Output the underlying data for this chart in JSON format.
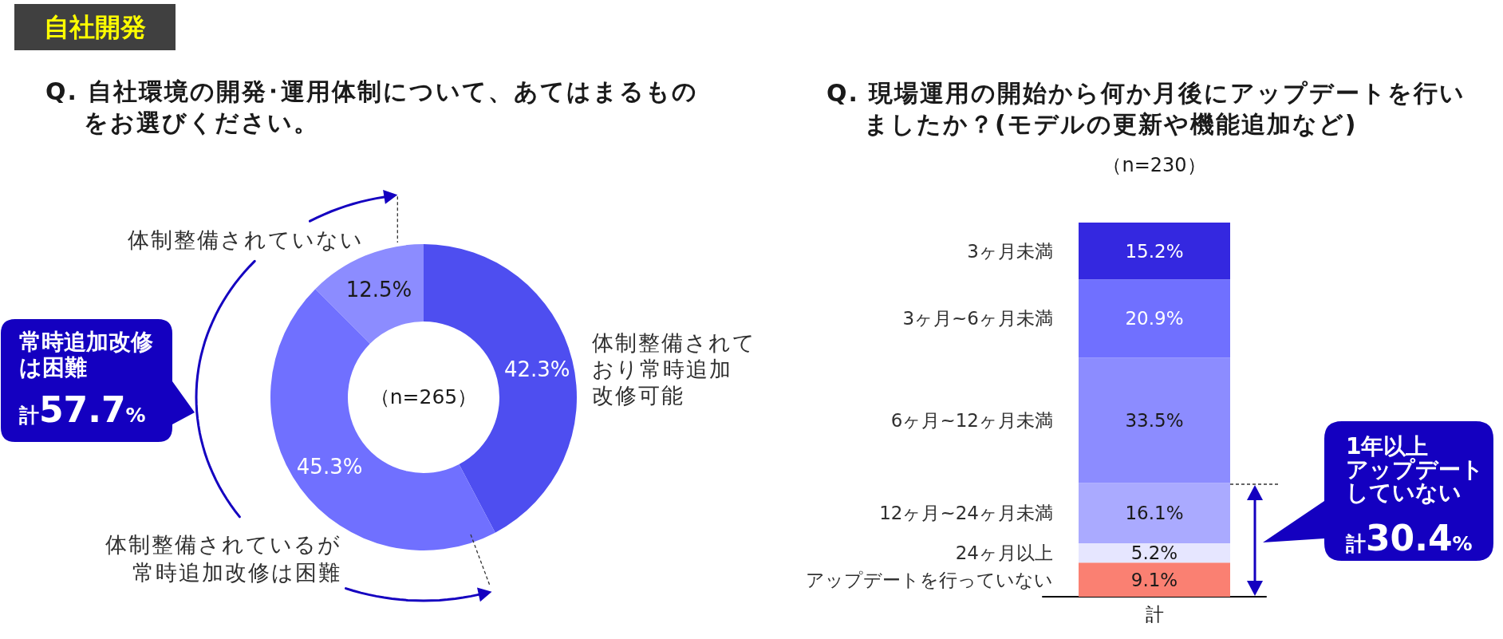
{
  "chart_data": [
    {
      "type": "donut",
      "title": "Q. 自社環境の開発･運用体制について、あてはまるものをお選びください。",
      "categories": [
        "体制整備されており常時追加改修可能",
        "体制整備されているが常時追加改修は困難",
        "体制整備されていない"
      ],
      "values": [
        42.3,
        45.3,
        12.5
      ],
      "colors": [
        "#4e4ef0",
        "#7070ff",
        "#8c8cff"
      ],
      "value_labels": [
        "42.3%",
        "45.3%",
        "12.5%"
      ],
      "annotations": [
        "自社開発",
        "（n=265）",
        "常時追加改修は困難",
        "計57.7%"
      ]
    },
    {
      "type": "bar",
      "title": "Q. 現場運用の開始から何か月後にアップデートを行いましたか？(モデルの更新や機能追加など)",
      "subtitle": "（n=230）",
      "categories": [
        "計"
      ],
      "stacked": true,
      "ylim": [
        0,
        100
      ],
      "tick_labels": "x",
      "series": [
        {
          "name": "アップデートを行っていない",
          "color": "#fa8072",
          "values": [
            9.1
          ],
          "value_labels": [
            "9.1%"
          ]
        },
        {
          "name": "24ヶ月以上",
          "color": "#e6e6ff",
          "values": [
            5.2
          ],
          "value_labels": [
            "5.2%"
          ]
        },
        {
          "name": "12ヶ月~24ヶ月未満",
          "color": "#aaaaff",
          "values": [
            16.1
          ],
          "value_labels": [
            "16.1%"
          ]
        },
        {
          "name": "6ヶ月~12ヶ月未満",
          "color": "#8c8cff",
          "values": [
            33.5
          ],
          "value_labels": [
            "33.5%"
          ]
        },
        {
          "name": "3ヶ月~6ヶ月未満",
          "color": "#7070ff",
          "values": [
            20.9
          ],
          "value_labels": [
            "20.9%"
          ]
        },
        {
          "name": "3ヶ月未満",
          "color": "#3428e0",
          "values": [
            15.2
          ],
          "value_labels": [
            "15.2%"
          ]
        }
      ],
      "annotations": [
        "1年以上アップデートしていない",
        "計30.4%"
      ]
    }
  ]
}
